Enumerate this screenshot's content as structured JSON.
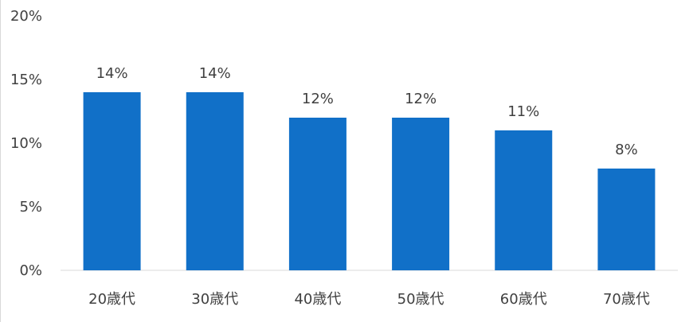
{
  "chart_data": {
    "type": "bar",
    "categories": [
      "20歳代",
      "30歳代",
      "40歳代",
      "50歳代",
      "60歳代",
      "70歳代"
    ],
    "values": [
      14,
      14,
      12,
      12,
      11,
      8
    ],
    "data_labels": [
      "14%",
      "14%",
      "12%",
      "12%",
      "11%",
      "8%"
    ],
    "y_ticks": [
      0,
      5,
      10,
      15,
      20
    ],
    "y_tick_labels": [
      "0%",
      "5%",
      "10%",
      "15%",
      "20%"
    ],
    "ylim": [
      0,
      20
    ],
    "grid": false,
    "title": "",
    "xlabel": "",
    "ylabel": "",
    "bar_color": "#1170C8",
    "axis_color": "#D9D9D9",
    "text_color": "#404040"
  }
}
